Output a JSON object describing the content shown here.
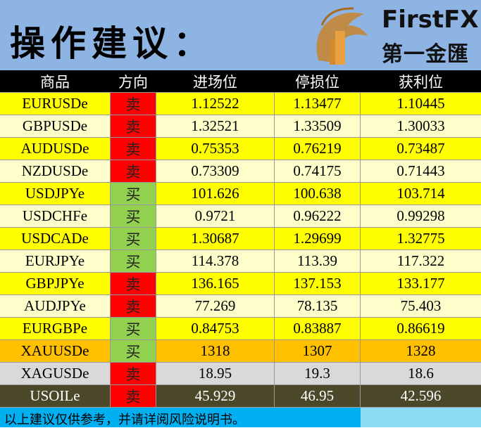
{
  "header": {
    "title": "操作建议："
  },
  "logo": {
    "brand": "FirstFX",
    "name": "第一金匯"
  },
  "table": {
    "columns": [
      "商品",
      "方向",
      "进场位",
      "停损位",
      "获利位"
    ],
    "rows": [
      [
        "EURUSDe",
        "卖",
        "1.12522",
        "1.13477",
        "1.10445"
      ],
      [
        "GBPUSDe",
        "卖",
        "1.32521",
        "1.33509",
        "1.30033"
      ],
      [
        "AUDUSDe",
        "卖",
        "0.75353",
        "0.76219",
        "0.73487"
      ],
      [
        "NZDUSDe",
        "卖",
        "0.73309",
        "0.74175",
        "0.71443"
      ],
      [
        "USDJPYe",
        "买",
        "101.626",
        "100.638",
        "103.714"
      ],
      [
        "USDCHFe",
        "买",
        "0.9721",
        "0.96222",
        "0.99298"
      ],
      [
        "USDCADe",
        "买",
        "1.30687",
        "1.29699",
        "1.32775"
      ],
      [
        "EURJPYe",
        "买",
        "114.378",
        "113.39",
        "117.322"
      ],
      [
        "GBPJPYe",
        "卖",
        "136.165",
        "137.153",
        "133.177"
      ],
      [
        "AUDJPYe",
        "卖",
        "77.269",
        "78.135",
        "75.403"
      ],
      [
        "EURGBPe",
        "买",
        "0.84753",
        "0.83887",
        "0.86619"
      ],
      [
        "XAUUSDe",
        "买",
        "1318",
        "1307",
        "1328"
      ],
      [
        "XAGUSDe",
        "卖",
        "18.95",
        "19.3",
        "18.6"
      ],
      [
        "USOILe",
        "卖",
        "45.929",
        "46.95",
        "42.596"
      ]
    ]
  },
  "footer": "以上建议仅供参考，并请详阅风险说明书。"
}
